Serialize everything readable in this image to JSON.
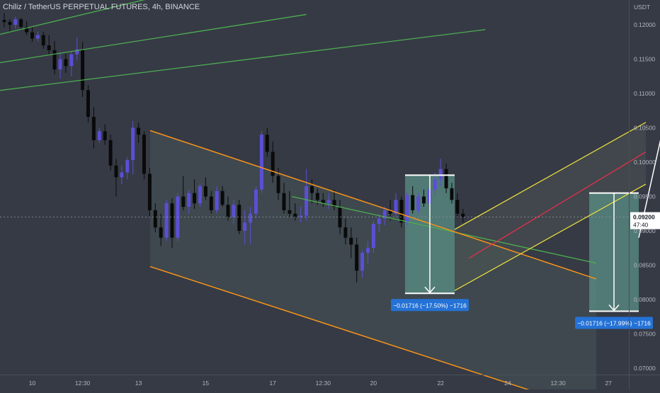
{
  "header": {
    "title": "Chiliz / TetherUS PERPETUAL FUTURES, 4h, BINANCE"
  },
  "colors": {
    "background": "#363a45",
    "bull_candle": "#5b4fd6",
    "bear_candle": "#0a0a0a",
    "orange_channel": "#f7931a",
    "yellow_channel": "#f2e33b",
    "green_line": "#4caf50",
    "red_line": "#e0314b",
    "measure_fill": "#5b8f86",
    "badge_bg": "#2472d6",
    "price_badge_bg": "#ffffff",
    "axis_text": "#b2b5be"
  },
  "chart_data": {
    "type": "candlestick",
    "title": "Chiliz / TetherUS PERPETUAL FUTURES, 4h, BINANCE",
    "y_axis": {
      "unit_label": "USDT",
      "ylim": [
        0.0695,
        0.1228
      ],
      "ticks": [
        "0.12000",
        "0.11500",
        "0.11000",
        "0.10500",
        "0.10000",
        "0.09500",
        "0.09000",
        "0.08500",
        "0.08000",
        "0.07500",
        "0.07000"
      ],
      "tick_values": [
        0.12,
        0.115,
        0.11,
        0.105,
        0.1,
        0.095,
        0.09,
        0.085,
        0.08,
        0.075,
        0.07
      ]
    },
    "x_axis": {
      "ticks": [
        "10",
        "12:30",
        "13",
        "15",
        "17",
        "12:30",
        "20",
        "22",
        "24",
        "12:30",
        "27"
      ],
      "tick_index": [
        5,
        14,
        24,
        36,
        48,
        57,
        66,
        78,
        90,
        99,
        108
      ]
    },
    "last_price": {
      "value": "0.09200",
      "countdown": "47:40"
    },
    "candles_ohlc": [
      [
        0.1207,
        0.1217,
        0.1196,
        0.1204
      ],
      [
        0.1204,
        0.1208,
        0.119,
        0.12
      ],
      [
        0.12,
        0.1212,
        0.1195,
        0.1208
      ],
      [
        0.1208,
        0.121,
        0.1192,
        0.1197
      ],
      [
        0.1197,
        0.1205,
        0.1185,
        0.1189
      ],
      [
        0.1189,
        0.1198,
        0.1175,
        0.118
      ],
      [
        0.118,
        0.119,
        0.1176,
        0.1185
      ],
      [
        0.1185,
        0.119,
        0.1165,
        0.117
      ],
      [
        0.117,
        0.1185,
        0.1155,
        0.1163
      ],
      [
        0.1163,
        0.1176,
        0.1128,
        0.1135
      ],
      [
        0.1135,
        0.116,
        0.1122,
        0.115
      ],
      [
        0.115,
        0.1158,
        0.113,
        0.114
      ],
      [
        0.114,
        0.1162,
        0.1125,
        0.1157
      ],
      [
        0.1157,
        0.1182,
        0.1148,
        0.1164
      ],
      [
        0.1164,
        0.1175,
        0.1095,
        0.1105
      ],
      [
        0.1105,
        0.1112,
        0.1058,
        0.1066
      ],
      [
        0.1066,
        0.108,
        0.102,
        0.1032
      ],
      [
        0.1032,
        0.105,
        0.1028,
        0.1045
      ],
      [
        0.1045,
        0.1055,
        0.1025,
        0.1032
      ],
      [
        0.1032,
        0.104,
        0.0988,
        0.0995
      ],
      [
        0.0995,
        0.1005,
        0.095,
        0.0978
      ],
      [
        0.0978,
        0.0995,
        0.0968,
        0.0985
      ],
      [
        0.0985,
        0.1007,
        0.0975,
        0.1003
      ],
      [
        0.1003,
        0.106,
        0.0982,
        0.105
      ],
      [
        0.105,
        0.1058,
        0.1028,
        0.104
      ],
      [
        0.104,
        0.1045,
        0.0975,
        0.0983
      ],
      [
        0.0983,
        0.0992,
        0.092,
        0.093
      ],
      [
        0.093,
        0.094,
        0.0898,
        0.0905
      ],
      [
        0.0905,
        0.0925,
        0.0878,
        0.089
      ],
      [
        0.089,
        0.0945,
        0.0885,
        0.094
      ],
      [
        0.094,
        0.0948,
        0.0875,
        0.089
      ],
      [
        0.089,
        0.0955,
        0.0885,
        0.095
      ],
      [
        0.095,
        0.098,
        0.093,
        0.0935
      ],
      [
        0.0935,
        0.096,
        0.0925,
        0.0955
      ],
      [
        0.0955,
        0.0975,
        0.0932,
        0.094
      ],
      [
        0.094,
        0.0968,
        0.0935,
        0.0965
      ],
      [
        0.0965,
        0.0978,
        0.0945,
        0.095
      ],
      [
        0.095,
        0.0958,
        0.0925,
        0.093
      ],
      [
        0.093,
        0.0965,
        0.0925,
        0.0958
      ],
      [
        0.0958,
        0.0965,
        0.0935,
        0.0938
      ],
      [
        0.0938,
        0.095,
        0.0915,
        0.092
      ],
      [
        0.092,
        0.0945,
        0.091,
        0.0938
      ],
      [
        0.0938,
        0.0945,
        0.0895,
        0.09
      ],
      [
        0.09,
        0.093,
        0.088,
        0.0912
      ],
      [
        0.0912,
        0.0935,
        0.088,
        0.0925
      ],
      [
        0.0925,
        0.0965,
        0.0918,
        0.096
      ],
      [
        0.096,
        0.1045,
        0.0955,
        0.104
      ],
      [
        0.104,
        0.105,
        0.1008,
        0.1015
      ],
      [
        0.1015,
        0.103,
        0.097,
        0.098
      ],
      [
        0.098,
        0.0992,
        0.0945,
        0.0955
      ],
      [
        0.0955,
        0.097,
        0.0925,
        0.093
      ],
      [
        0.093,
        0.0958,
        0.092,
        0.0925
      ],
      [
        0.0925,
        0.094,
        0.0915,
        0.092
      ],
      [
        0.092,
        0.0935,
        0.0912,
        0.0922
      ],
      [
        0.0922,
        0.099,
        0.0915,
        0.0965
      ],
      [
        0.0965,
        0.0975,
        0.094,
        0.0955
      ],
      [
        0.0955,
        0.0962,
        0.0938,
        0.0945
      ],
      [
        0.0945,
        0.0955,
        0.0935,
        0.094
      ],
      [
        0.094,
        0.0955,
        0.0932,
        0.0945
      ],
      [
        0.0945,
        0.096,
        0.093,
        0.0935
      ],
      [
        0.0935,
        0.0945,
        0.0895,
        0.0905
      ],
      [
        0.0905,
        0.0918,
        0.088,
        0.089
      ],
      [
        0.089,
        0.0905,
        0.086,
        0.088
      ],
      [
        0.088,
        0.089,
        0.0825,
        0.0842
      ],
      [
        0.0842,
        0.0872,
        0.0832,
        0.0868
      ],
      [
        0.0868,
        0.0885,
        0.0852,
        0.0875
      ],
      [
        0.0875,
        0.0915,
        0.0868,
        0.091
      ],
      [
        0.091,
        0.0925,
        0.0898,
        0.0918
      ],
      [
        0.0918,
        0.0935,
        0.0908,
        0.093
      ],
      [
        0.093,
        0.0945,
        0.0915,
        0.0925
      ],
      [
        0.0925,
        0.0955,
        0.092,
        0.0945
      ],
      [
        0.0945,
        0.095,
        0.0905,
        0.0912
      ],
      [
        0.0912,
        0.0958,
        0.0908,
        0.0952
      ],
      [
        0.0952,
        0.0965,
        0.0925,
        0.093
      ],
      [
        0.093,
        0.0955,
        0.0925,
        0.095
      ],
      [
        0.095,
        0.096,
        0.0935,
        0.094
      ],
      [
        0.094,
        0.0968,
        0.0935,
        0.096
      ],
      [
        0.096,
        0.0985,
        0.0952,
        0.0975
      ],
      [
        0.0975,
        0.1005,
        0.0965,
        0.099
      ],
      [
        0.099,
        0.0998,
        0.0955,
        0.0962
      ],
      [
        0.0962,
        0.097,
        0.094,
        0.0945
      ],
      [
        0.0945,
        0.0955,
        0.0918,
        0.0925
      ],
      [
        0.0925,
        0.0932,
        0.0912,
        0.092
      ]
    ],
    "annotations": [
      {
        "type": "measure",
        "label": "−0.01716 (−17.50%) −1716"
      },
      {
        "type": "measure",
        "label": "−0.01716 (−17.99%) −1716"
      }
    ],
    "drawings": {
      "orange_channel": {
        "upper": [
          [
            0,
            0.1046
          ],
          [
            28,
            0.095
          ]
        ],
        "lower": [
          [
            0,
            0.0848
          ],
          [
            28,
            0.0754
          ]
        ],
        "t_start": 20,
        "t_end": 63
      },
      "green_lines": [
        [
          [
            -10,
            0.1168
          ],
          [
            32,
            0.125
          ]
        ],
        [
          [
            -10,
            0.1133
          ],
          [
            54,
            0.1215
          ]
        ],
        [
          [
            -10,
            0.1095
          ],
          [
            86,
            0.1193
          ]
        ],
        [
          [
            20,
            0.095
          ],
          [
            63,
            0.0853
          ]
        ]
      ],
      "yellow_channel": {
        "lower": [
          [
            43,
            0.0813
          ],
          [
            70,
            0.0968
          ]
        ],
        "upper": [
          [
            43,
            0.0902
          ],
          [
            70,
            0.1058
          ]
        ]
      },
      "red_line": [
        [
          45,
          0.086
        ],
        [
          70,
          0.1015
        ]
      ],
      "white_arrow": {
        "from": [
          69,
          0.089
        ],
        "to": [
          75,
          0.1168
        ]
      },
      "measure_1": {
        "t_start": 36,
        "t_end": 43,
        "high": 0.0981,
        "low": 0.0809
      },
      "measure_2": {
        "t_start": 62,
        "t_end": 69,
        "high": 0.0955,
        "low": 0.0783
      }
    },
    "grid": false,
    "legend": "none"
  }
}
